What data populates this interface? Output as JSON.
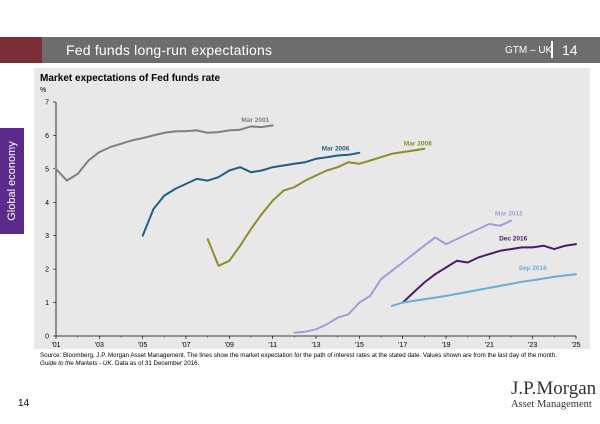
{
  "header": {
    "title": "Fed funds long-run expectations",
    "code": "GTM – UK",
    "page": "14"
  },
  "side_tab": {
    "label": "Global economy"
  },
  "chart_data": {
    "type": "line",
    "title": "Market expectations of Fed funds rate",
    "ylabel": "%",
    "xlim": [
      2001,
      2025
    ],
    "ylim": [
      0,
      7
    ],
    "x_ticks": [
      "'01",
      "'03",
      "'05",
      "'07",
      "'09",
      "'11",
      "'13",
      "'15",
      "'17",
      "'19",
      "'21",
      "'23",
      "'25"
    ],
    "y_ticks": [
      "0",
      "1",
      "2",
      "3",
      "4",
      "5",
      "6",
      "7"
    ],
    "grid": false,
    "legend": "inline labels",
    "series": [
      {
        "name": "Mar 2001",
        "color": "#7f7f7f",
        "x": [
          2001,
          2001.5,
          2002,
          2002.5,
          2003,
          2003.5,
          2004,
          2004.5,
          2005,
          2005.5,
          2006,
          2006.5,
          2007,
          2007.5,
          2008,
          2008.5,
          2009,
          2009.5,
          2010,
          2010.5,
          2011
        ],
        "y": [
          5.0,
          4.65,
          4.85,
          5.25,
          5.5,
          5.65,
          5.75,
          5.85,
          5.92,
          6.0,
          6.08,
          6.12,
          6.13,
          6.15,
          6.08,
          6.1,
          6.15,
          6.17,
          6.27,
          6.25,
          6.3
        ]
      },
      {
        "name": "Mar 2006",
        "color": "#1f5f7f",
        "x": [
          2005,
          2005.5,
          2006,
          2006.5,
          2007,
          2007.5,
          2008,
          2008.5,
          2009,
          2009.5,
          2010,
          2010.5,
          2011,
          2011.5,
          2012,
          2012.5,
          2013,
          2013.5,
          2014,
          2014.5,
          2015
        ],
        "y": [
          3.0,
          3.8,
          4.2,
          4.4,
          4.55,
          4.7,
          4.65,
          4.75,
          4.95,
          5.05,
          4.9,
          4.95,
          5.05,
          5.1,
          5.15,
          5.2,
          5.3,
          5.35,
          5.4,
          5.42,
          5.48
        ]
      },
      {
        "name": "Mar 2008",
        "color": "#8c8c2a",
        "x": [
          2008,
          2008.5,
          2009,
          2009.5,
          2010,
          2010.5,
          2011,
          2011.5,
          2012,
          2012.5,
          2013,
          2013.5,
          2014,
          2014.5,
          2015,
          2015.5,
          2016,
          2016.5,
          2017,
          2017.5,
          2018
        ],
        "y": [
          2.9,
          2.1,
          2.25,
          2.7,
          3.2,
          3.65,
          4.05,
          4.35,
          4.45,
          4.65,
          4.8,
          4.95,
          5.05,
          5.2,
          5.15,
          5.25,
          5.35,
          5.45,
          5.5,
          5.55,
          5.6
        ]
      },
      {
        "name": "Mar 2012",
        "color": "#a89ad8",
        "x": [
          2012,
          2012.5,
          2013,
          2013.5,
          2014,
          2014.5,
          2015,
          2015.5,
          2016,
          2016.5,
          2017,
          2017.5,
          2018,
          2018.5,
          2019,
          2019.5,
          2020,
          2020.5,
          2021,
          2021.5,
          2022
        ],
        "y": [
          0.1,
          0.13,
          0.2,
          0.35,
          0.55,
          0.65,
          1.0,
          1.2,
          1.7,
          1.95,
          2.2,
          2.45,
          2.7,
          2.95,
          2.75,
          2.9,
          3.05,
          3.2,
          3.35,
          3.3,
          3.45
        ]
      },
      {
        "name": "Dec 2016",
        "color": "#4b1a6e",
        "x": [
          2017,
          2017.5,
          2018,
          2018.5,
          2019,
          2019.5,
          2020,
          2020.5,
          2021,
          2021.5,
          2022,
          2022.5,
          2023,
          2023.5,
          2024,
          2024.5,
          2025
        ],
        "y": [
          1.0,
          1.3,
          1.6,
          1.85,
          2.05,
          2.25,
          2.2,
          2.35,
          2.45,
          2.55,
          2.6,
          2.65,
          2.65,
          2.7,
          2.6,
          2.7,
          2.75
        ]
      },
      {
        "name": "Sep 2016",
        "color": "#6aaed6",
        "x": [
          2016.5,
          2017,
          2017.5,
          2018,
          2018.5,
          2019,
          2019.5,
          2020,
          2020.5,
          2021,
          2021.5,
          2022,
          2022.5,
          2023,
          2023.5,
          2024,
          2024.5,
          2025
        ],
        "y": [
          0.9,
          1.0,
          1.05,
          1.1,
          1.15,
          1.2,
          1.26,
          1.32,
          1.38,
          1.44,
          1.5,
          1.56,
          1.62,
          1.67,
          1.72,
          1.77,
          1.81,
          1.85
        ]
      }
    ],
    "annotations": [
      {
        "text": "Mar 2001",
        "x": 2010.2,
        "y": 6.4,
        "color": "#7f7f7f"
      },
      {
        "text": "Mar 2006",
        "x": 2013.9,
        "y": 5.55,
        "color": "#1f5f7f"
      },
      {
        "text": "Mar 2008",
        "x": 2017.7,
        "y": 5.7,
        "color": "#8c8c2a"
      },
      {
        "text": "Mar 2012",
        "x": 2021.9,
        "y": 3.6,
        "color": "#a89ad8"
      },
      {
        "text": "Dec 2016",
        "x": 2022.1,
        "y": 2.85,
        "color": "#4b1a6e"
      },
      {
        "text": "Sep 2016",
        "x": 2023.0,
        "y": 1.98,
        "color": "#6aaed6"
      }
    ]
  },
  "footer": {
    "source_text": "Source: Bloomberg, J.P. Morgan Asset Management. The lines show the market expectation for the path of interest rates at the stated date. Values shown are from the last day of the month. ",
    "source_italic": "Guide to the Markets - UK.",
    "source_date": " Data as of 31 December 2016.",
    "page_number": "14",
    "brand_name": "J.P.Morgan",
    "brand_sub": "Asset Management"
  }
}
